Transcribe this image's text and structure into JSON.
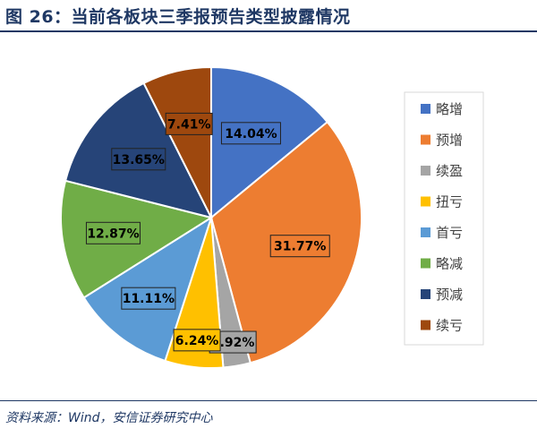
{
  "figure": {
    "title": "图 26：当前各板块三季报预告类型披露情况",
    "source": "资料来源：Wind，安信证券研究中心"
  },
  "chart_data": {
    "type": "pie",
    "categories": [
      "略增",
      "预增",
      "续盈",
      "扭亏",
      "首亏",
      "略减",
      "预减",
      "续亏"
    ],
    "values": [
      14.04,
      31.77,
      2.92,
      6.24,
      11.11,
      12.87,
      13.65,
      7.41
    ],
    "labels": [
      "14.04%",
      "31.77%",
      "2.92%",
      "6.24%",
      "11.11%",
      "12.87%",
      "13.65%",
      "7.41%"
    ],
    "colors": [
      "#4472C4",
      "#ED7D31",
      "#A5A5A5",
      "#FFC000",
      "#5B9BD5",
      "#70AD47",
      "#264478",
      "#9E480E"
    ],
    "legend_position": "right",
    "start_angle": "top",
    "direction": "clockwise"
  }
}
